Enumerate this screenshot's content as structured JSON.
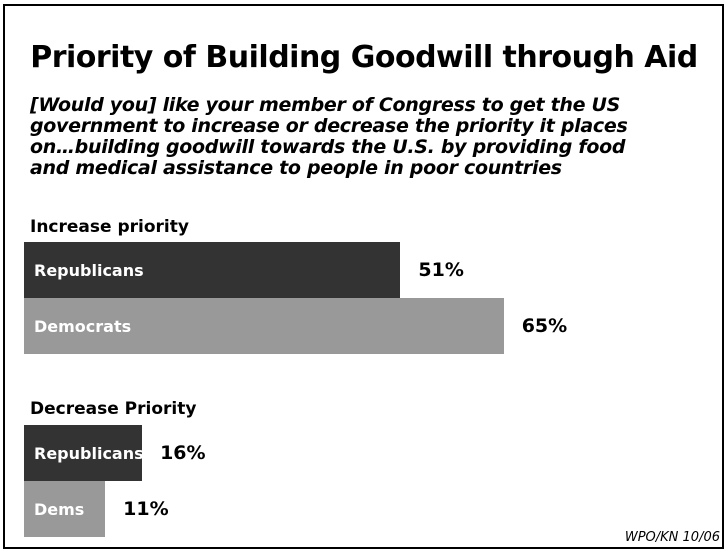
{
  "chart_data": {
    "type": "bar",
    "orientation": "horizontal",
    "title": "Priority of Building Goodwill through Aid",
    "subtitle_lines": [
      "[Would you] like your member of Congress to get the US",
      "government to increase or decrease the priority it places",
      "on…building goodwill towards the U.S. by providing food",
      "and medical assistance to people in poor countries"
    ],
    "groups": [
      {
        "label": "Increase priority",
        "bars": [
          {
            "label": "Republicans",
            "value": 51,
            "display": "51%",
            "color": "#333333"
          },
          {
            "label": "Democrats",
            "value": 65,
            "display": "65%",
            "color": "#999999"
          }
        ]
      },
      {
        "label": "Decrease Priority",
        "bars": [
          {
            "label": "Republicans",
            "value": 16,
            "display": "16%",
            "color": "#333333"
          },
          {
            "label": "Dems",
            "value": 11,
            "display": "11%",
            "color": "#999999"
          }
        ]
      }
    ],
    "source": "WPO/KN 10/06"
  }
}
